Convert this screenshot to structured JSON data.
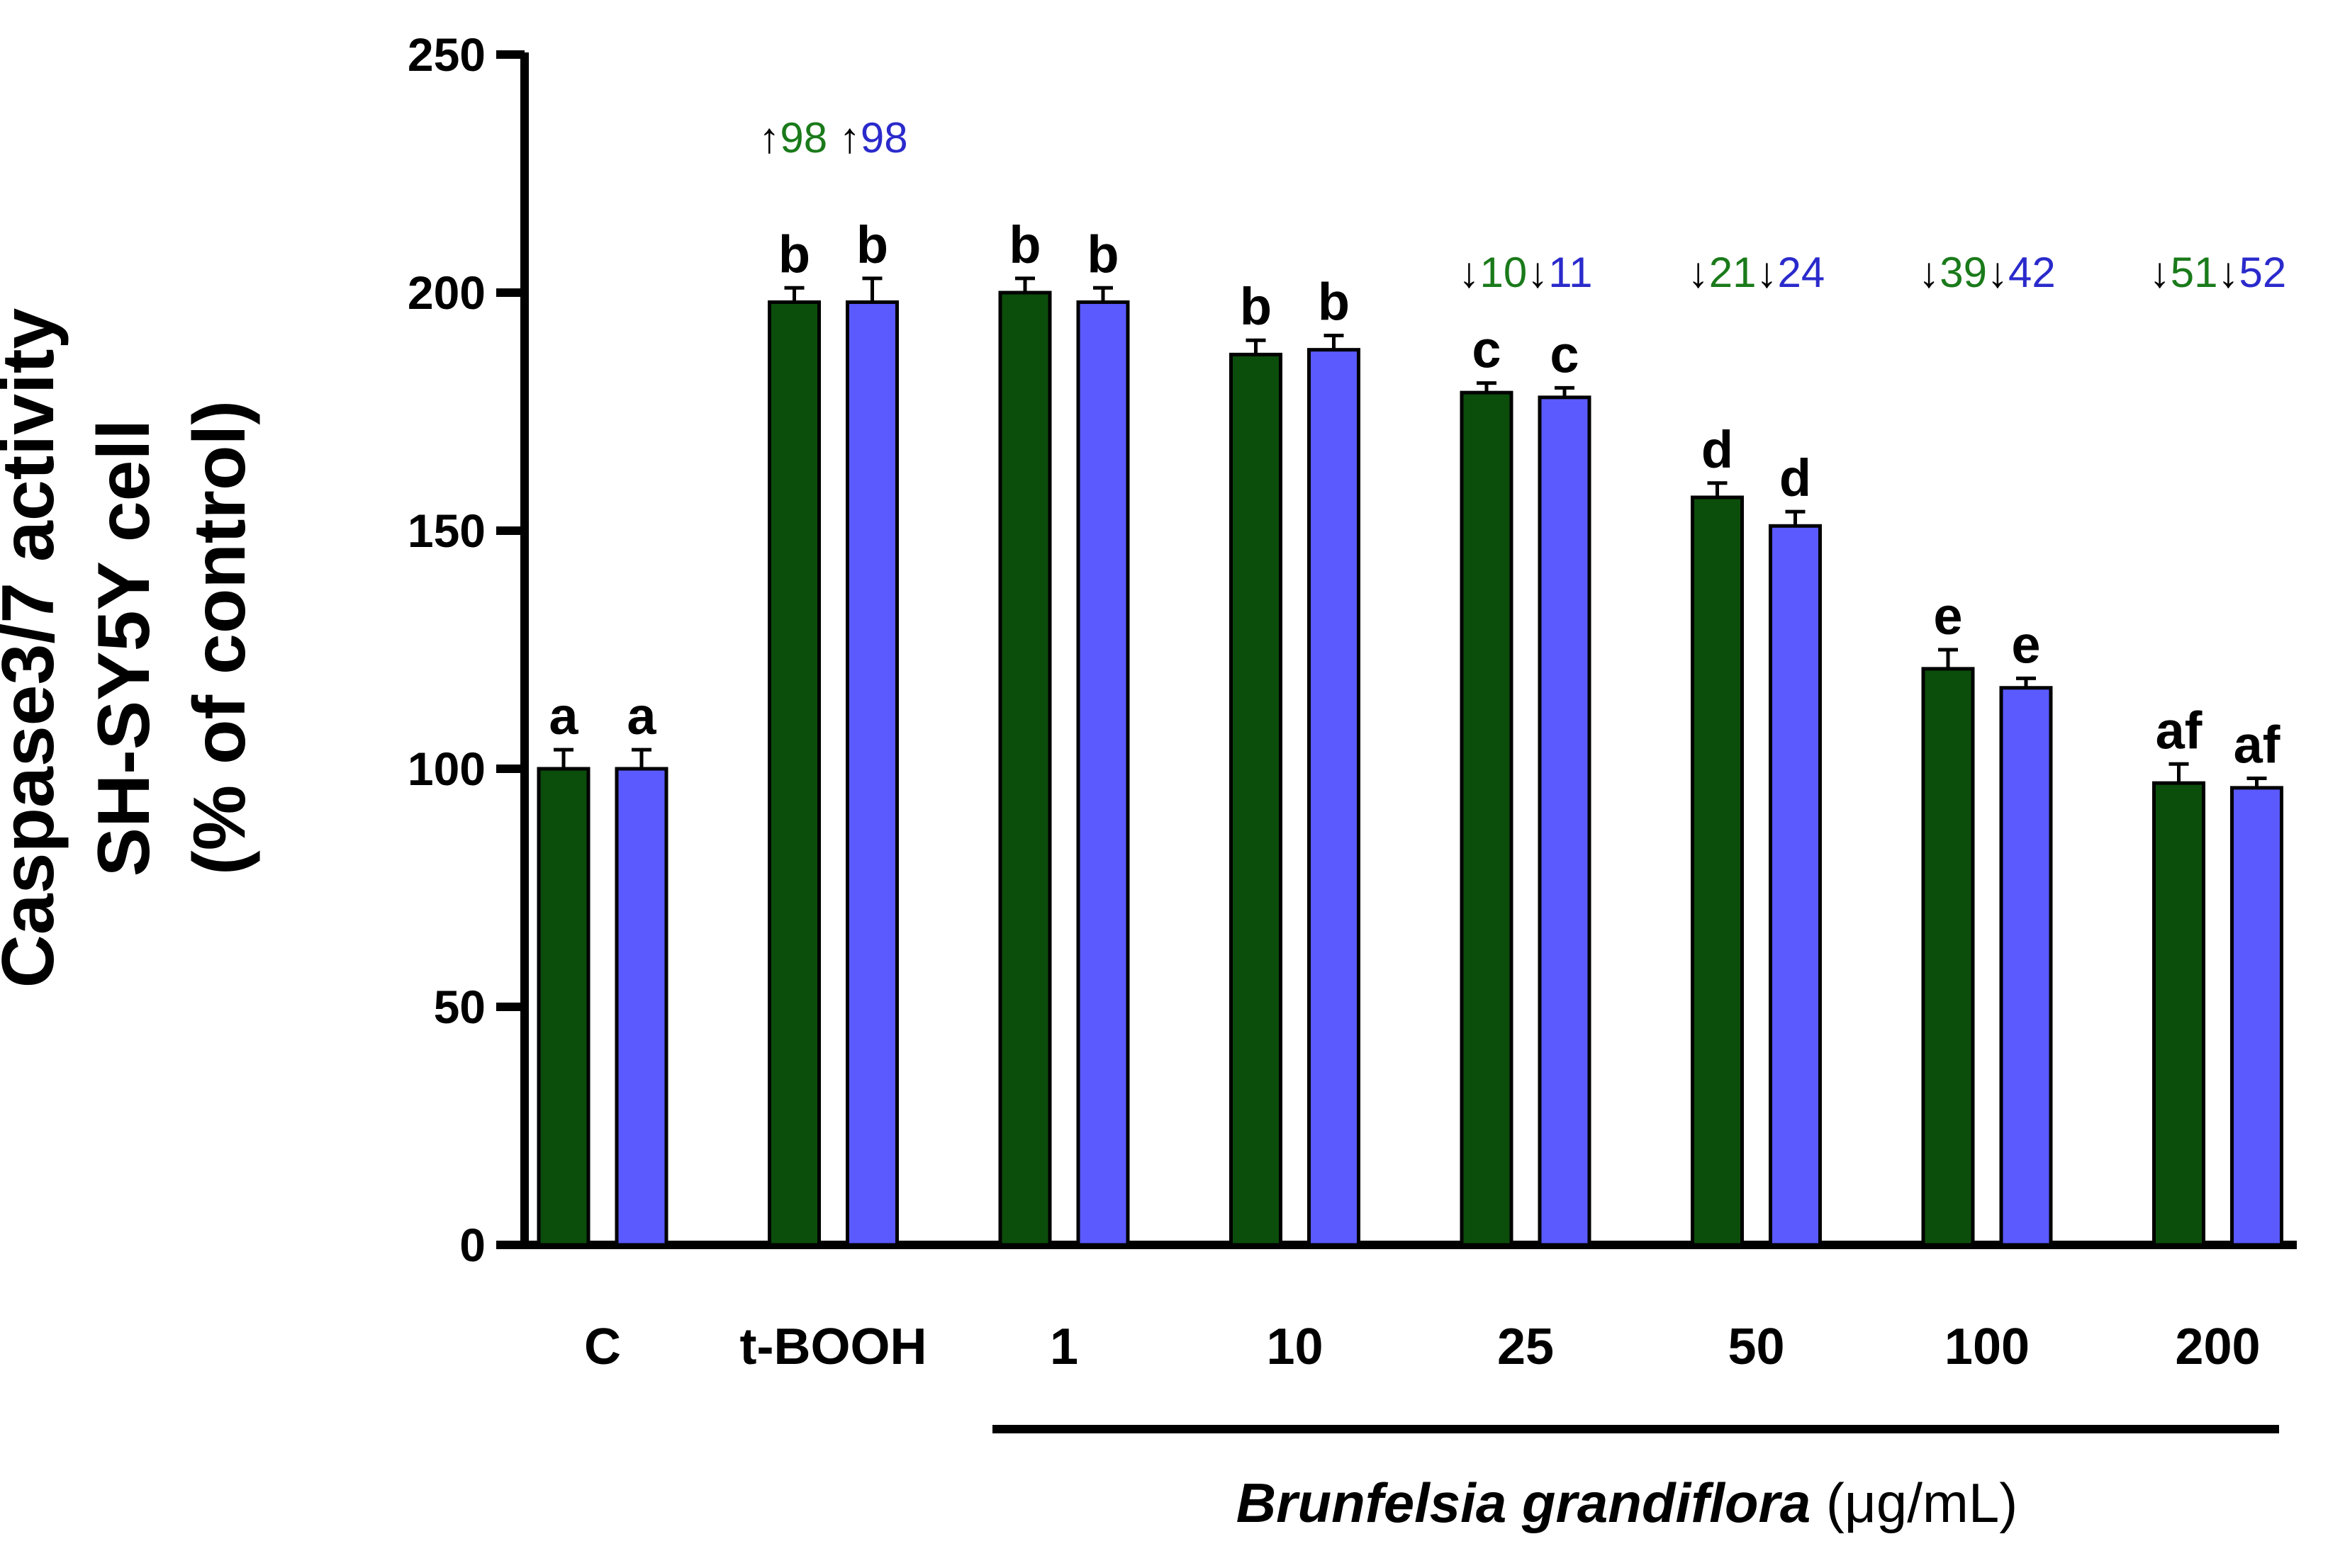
{
  "chart_data": {
    "type": "bar",
    "ylabel": [
      "Caspase3/7 activity",
      "SH-SY5Y cell",
      "(% of control)"
    ],
    "xlabel_italic": "Brunfelsia grandiflora",
    "xlabel_unit": " (μg/mL)",
    "ylim": [
      0,
      250
    ],
    "yticks": [
      0,
      50,
      100,
      150,
      200,
      250
    ],
    "categories": [
      "C",
      "t-BOOH",
      "1",
      "10",
      "25",
      "50",
      "100",
      "200"
    ],
    "series": [
      {
        "name": "series-green",
        "color": "#0b4d0b",
        "values": [
          100,
          198,
          200,
          187,
          179,
          157,
          121,
          97
        ],
        "errors": [
          4,
          3,
          3,
          3,
          2,
          3,
          4,
          4
        ],
        "sig": [
          "a",
          "b",
          "b",
          "b",
          "c",
          "d",
          "e",
          "af"
        ]
      },
      {
        "name": "series-blue",
        "color": "#5a5aff",
        "values": [
          100,
          198,
          198,
          188,
          178,
          151,
          117,
          96
        ],
        "errors": [
          4,
          5,
          3,
          3,
          2,
          3,
          2,
          2
        ],
        "sig": [
          "a",
          "b",
          "b",
          "b",
          "c",
          "d",
          "e",
          "af"
        ]
      }
    ],
    "change_annotations": [
      null,
      {
        "green": "↑98",
        "blue": "↑98"
      },
      null,
      null,
      {
        "green": "↓10",
        "blue": "↓11"
      },
      {
        "green": "↓21",
        "blue": "↓24"
      },
      {
        "green": "↓39",
        "blue": "↓42"
      },
      {
        "green": "↓51",
        "blue": "↓52"
      }
    ],
    "annotation_arrow_color": "#000000",
    "annotation_green_color": "#1a7a1a",
    "annotation_blue_color": "#2a2acc",
    "bracket_groups": [
      "1",
      "10",
      "25",
      "50",
      "100",
      "200"
    ]
  }
}
